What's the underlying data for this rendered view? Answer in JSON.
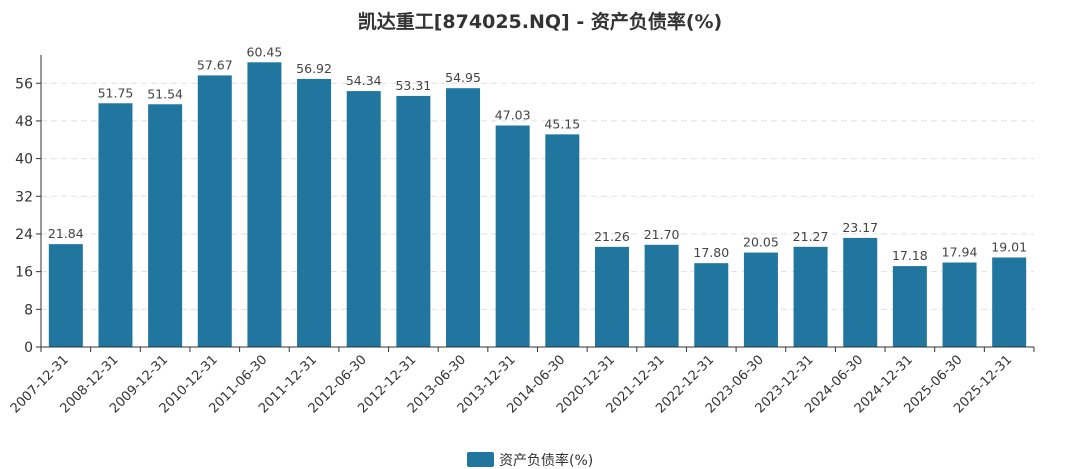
{
  "chart_data": {
    "type": "bar",
    "title": "凯达重工[874025.NQ] - 资产负债率(%)",
    "xlabel": "",
    "ylabel": "",
    "categories": [
      "2007-12-31",
      "2008-12-31",
      "2009-12-31",
      "2010-12-31",
      "2011-06-30",
      "2011-12-31",
      "2012-06-30",
      "2012-12-31",
      "2013-06-30",
      "2013-12-31",
      "2014-06-30",
      "2020-12-31",
      "2021-12-31",
      "2022-12-31",
      "2023-06-30",
      "2023-12-31",
      "2024-06-30",
      "2024-12-31",
      "2025-06-30",
      "2025-12-31"
    ],
    "series": [
      {
        "name": "资产负债率(%)",
        "values": [
          21.84,
          51.75,
          51.54,
          57.67,
          60.45,
          56.92,
          54.34,
          53.31,
          54.95,
          47.03,
          45.15,
          21.26,
          21.7,
          17.8,
          20.05,
          21.27,
          23.17,
          17.18,
          17.94,
          19.01
        ],
        "labels": [
          "21.84",
          "51.75",
          "51.54",
          "57.67",
          "60.45",
          "56.92",
          "54.34",
          "53.31",
          "54.95",
          "47.03",
          "45.15",
          "21.26",
          "21.70",
          "17.80",
          "20.05",
          "21.27",
          "23.17",
          "17.18",
          "17.94",
          "19.01"
        ],
        "color": "#21769f"
      }
    ],
    "ylim": [
      0,
      62
    ],
    "yticks": [
      0,
      8,
      16,
      24,
      32,
      40,
      48,
      56
    ],
    "grid": true,
    "legend_position": "bottom-center"
  }
}
